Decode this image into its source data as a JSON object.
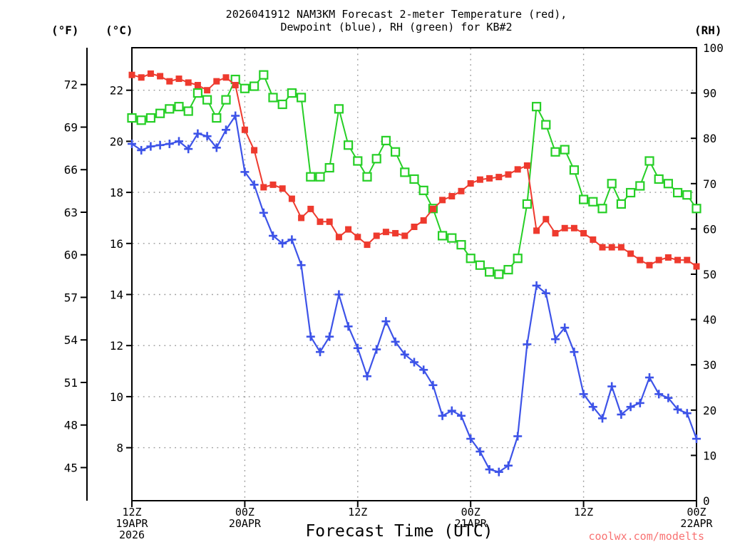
{
  "title": {
    "line1": "2026041912 NAM3KM Forecast 2-meter Temperature (red),",
    "line2": "Dewpoint (blue), RH (green) for KB#2"
  },
  "axes": {
    "fahrenheit": {
      "header": "(°F)",
      "ticks": [
        72,
        69,
        66,
        63,
        60,
        57,
        54,
        51,
        48,
        45
      ]
    },
    "celsius": {
      "header": "(°C)",
      "ticks": [
        22,
        20,
        18,
        16,
        14,
        12,
        10,
        8
      ]
    },
    "rh": {
      "header": "(RH)",
      "ticks": [
        100,
        90,
        80,
        70,
        60,
        50,
        40,
        30,
        20,
        10,
        0
      ]
    },
    "x": {
      "label": "Forecast Time (UTC)",
      "ticks": [
        {
          "hour": 0,
          "line1": "12Z",
          "line2": "19APR",
          "line3": "2026"
        },
        {
          "hour": 12,
          "line1": "00Z",
          "line2": "20APR",
          "line3": ""
        },
        {
          "hour": 24,
          "line1": "12Z",
          "line2": "",
          "line3": ""
        },
        {
          "hour": 36,
          "line1": "00Z",
          "line2": "21APR",
          "line3": ""
        },
        {
          "hour": 48,
          "line1": "12Z",
          "line2": "",
          "line3": ""
        },
        {
          "hour": 60,
          "line1": "00Z",
          "line2": "22APR",
          "line3": ""
        }
      ]
    }
  },
  "watermark": {
    "text": "coolwx.com/modelts",
    "color": "#f87272"
  },
  "colors": {
    "temperature": "#ee3a2e",
    "dewpoint": "#3d53e8",
    "rh": "#26cf26",
    "grid": "#999999",
    "axis": "#000000",
    "marker_fill_open": "#ffffff"
  },
  "chart_data": {
    "type": "line",
    "title": "2026041912 NAM3KM Forecast 2-meter Temperature (red), Dewpoint (blue), RH (green) for KB#2",
    "xlabel": "Forecast Time (UTC)",
    "x_start": "12Z 19APR 2026",
    "x_end": "00Z 22APR 2026",
    "x_unit": "hours from start",
    "x_range": [
      0,
      60
    ],
    "x_interval_hours": 1,
    "celsius_axis_range": [
      6.3,
      23.7
    ],
    "fahrenheit_axis_range": [
      43.3,
      74.6
    ],
    "rh_axis_range": [
      0,
      100
    ],
    "grid": "dotted horizontal at even Celsius values, dotted vertical every 12 hours",
    "legend_position": "in title",
    "series": [
      {
        "name": "2-meter Temperature",
        "unit": "°C",
        "axis": "celsius",
        "color_key": "temperature",
        "marker": "filled-square",
        "values": [
          22.6,
          22.5,
          22.65,
          22.55,
          22.35,
          22.45,
          22.3,
          22.2,
          22.0,
          22.35,
          22.5,
          22.2,
          20.45,
          19.65,
          18.2,
          18.3,
          18.15,
          17.75,
          17.0,
          17.35,
          16.85,
          16.85,
          16.25,
          16.55,
          16.25,
          15.95,
          16.3,
          16.45,
          16.4,
          16.3,
          16.65,
          16.9,
          17.35,
          17.7,
          17.85,
          18.05,
          18.35,
          18.5,
          18.55,
          18.6,
          18.7,
          18.9,
          19.05,
          16.5,
          16.95,
          16.4,
          16.6,
          16.6,
          16.4,
          16.15,
          15.85,
          15.85,
          15.85,
          15.6,
          15.35,
          15.15,
          15.35,
          15.45,
          15.35,
          15.35,
          15.1
        ]
      },
      {
        "name": "Dewpoint",
        "unit": "°C",
        "axis": "celsius",
        "color_key": "dewpoint",
        "marker": "plus",
        "values": [
          19.9,
          19.65,
          19.8,
          19.85,
          19.9,
          20.0,
          19.7,
          20.3,
          20.2,
          19.75,
          20.45,
          21.0,
          18.8,
          18.3,
          17.2,
          16.3,
          16.0,
          16.15,
          15.15,
          12.35,
          11.75,
          12.35,
          14.0,
          12.75,
          11.9,
          10.8,
          11.85,
          12.95,
          12.15,
          11.65,
          11.35,
          11.05,
          10.45,
          9.25,
          9.45,
          9.25,
          8.35,
          7.85,
          7.15,
          7.05,
          7.3,
          8.45,
          12.05,
          14.35,
          14.05,
          12.25,
          12.7,
          11.75,
          10.1,
          9.6,
          9.15,
          10.4,
          9.3,
          9.6,
          9.75,
          10.75,
          10.1,
          9.95,
          9.5,
          9.35,
          8.35
        ]
      },
      {
        "name": "RH",
        "unit": "%",
        "axis": "rh",
        "color_key": "rh",
        "marker": "open-square",
        "values": [
          84.5,
          84,
          84.5,
          85.5,
          86.5,
          87,
          86,
          90,
          88.5,
          84.5,
          88.5,
          93,
          91,
          91.5,
          94,
          89,
          87.5,
          90,
          89,
          71.5,
          71.5,
          73.5,
          86.5,
          78.5,
          75,
          71.5,
          75.5,
          79.5,
          77,
          72.5,
          71,
          68.5,
          64.5,
          58.5,
          58,
          56.5,
          53.5,
          52,
          50.5,
          50,
          51,
          53.5,
          65.5,
          87,
          83,
          77,
          77.5,
          73,
          66.5,
          66,
          64.5,
          70,
          65.5,
          68,
          69.5,
          75,
          71,
          70,
          68,
          67.5,
          64.5
        ]
      }
    ]
  }
}
